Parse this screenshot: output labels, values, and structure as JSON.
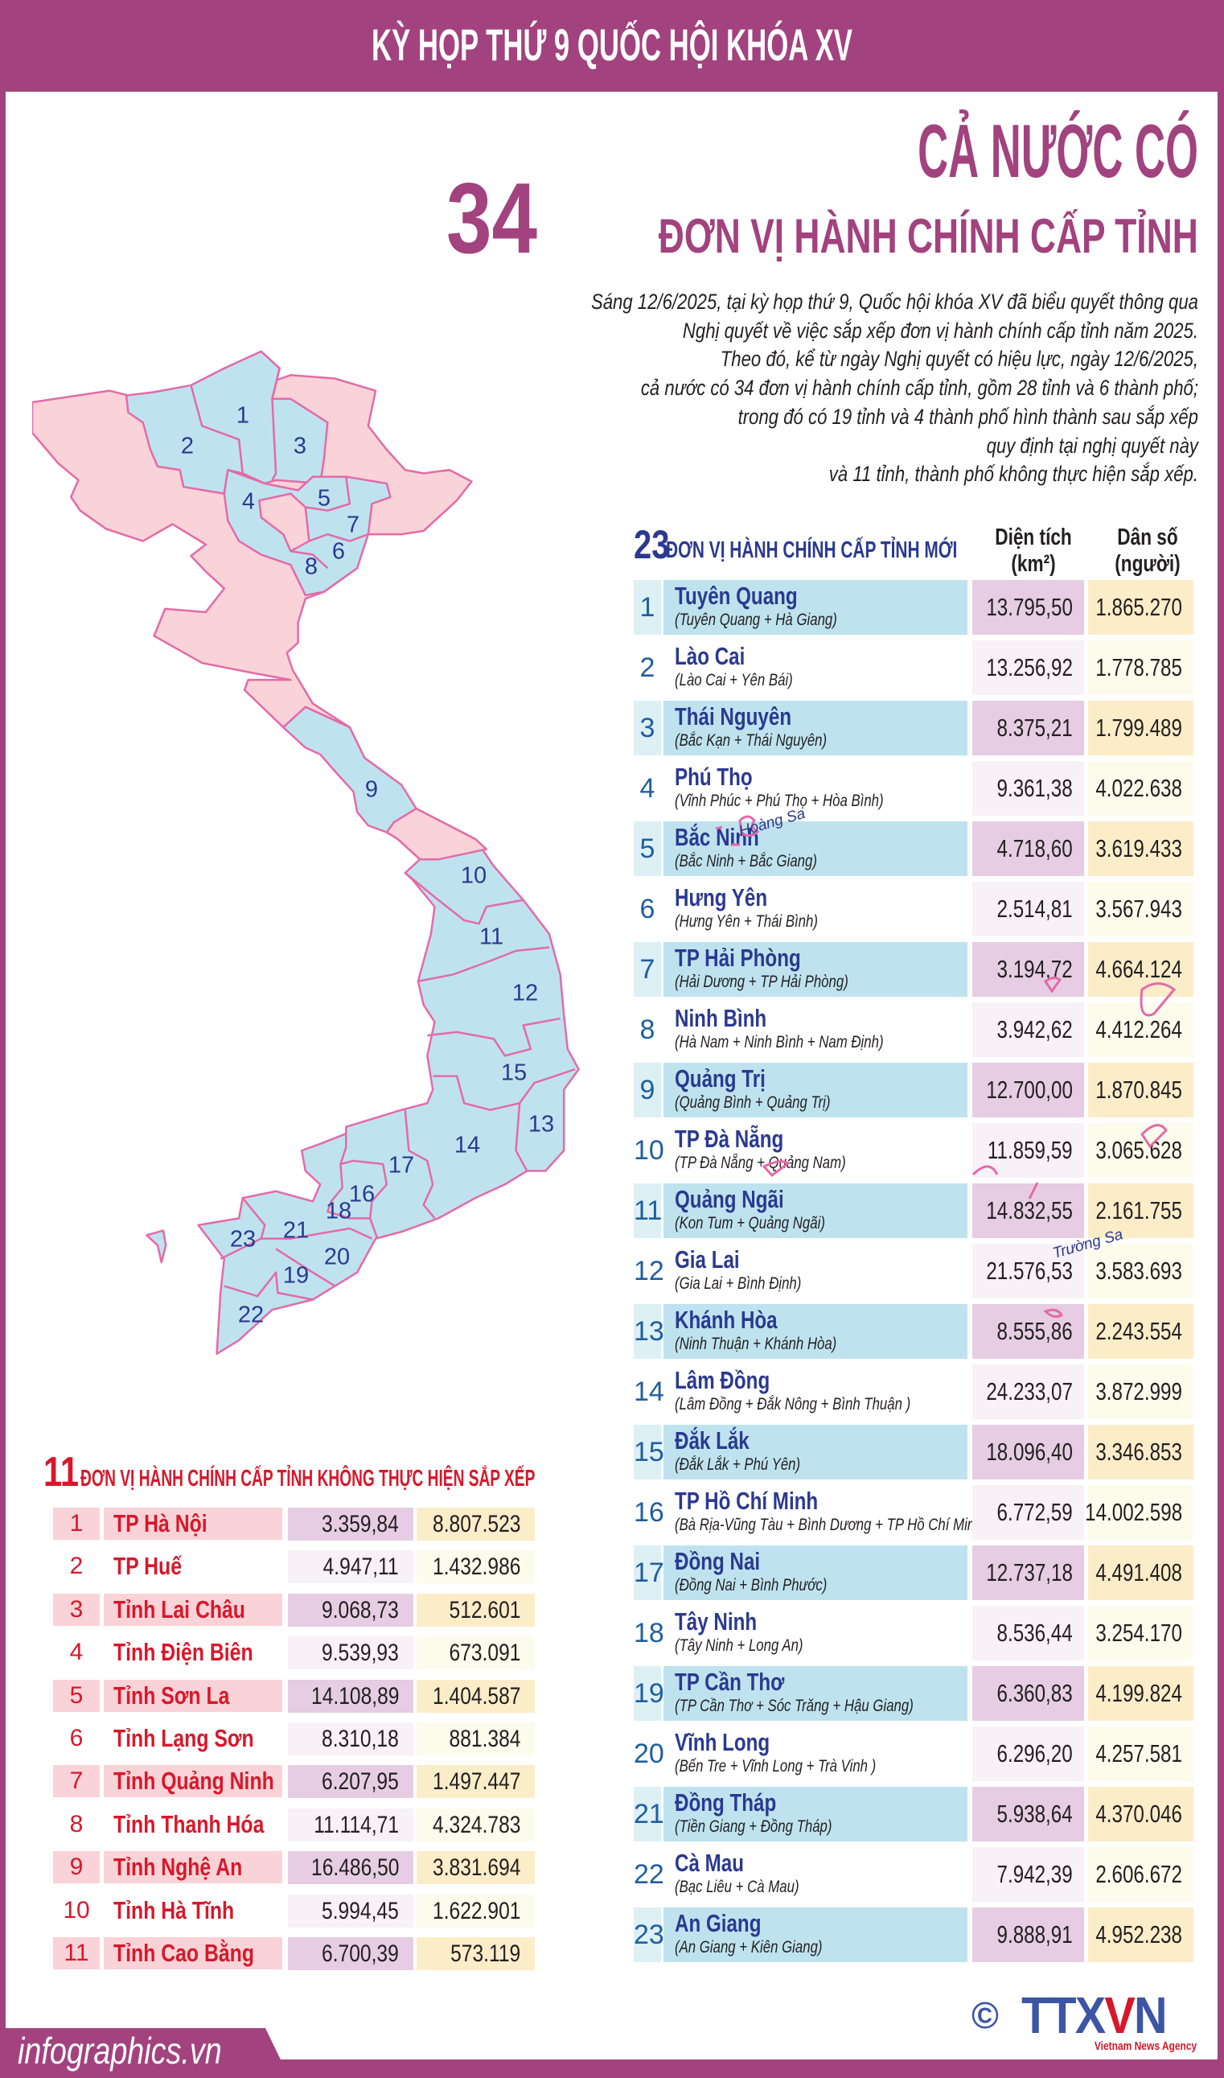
{
  "header": {
    "title": "KỲ HỌP THỨ 9 QUỐC HỘI KHÓA XV"
  },
  "headline": {
    "line1": "CẢ NƯỚC CÓ",
    "number": "34",
    "line2": "ĐƠN VỊ HÀNH CHÍNH CẤP TỈNH"
  },
  "intro_lines": [
    "Sáng 12/6/2025, tại kỳ họp thứ 9, Quốc hội khóa XV đã biểu quyết thông qua",
    "Nghị quyết về việc sắp xếp đơn vị hành chính cấp tỉnh năm 2025.",
    "Theo đó, kể từ ngày Nghị quyết có hiệu lực, ngày 12/6/2025,",
    "cả nước có 34 đơn vị hành chính cấp tỉnh, gồm 28 tỉnh và 6 thành phố;",
    "trong đó có 19 tỉnh và 4 thành phố hình thành sau sắp xếp",
    "quy định tại nghị quyết này",
    "và 11 tỉnh, thành phố không thực hiện sắp xếp."
  ],
  "map": {
    "labels": [
      "1",
      "2",
      "3",
      "4",
      "5",
      "6",
      "7",
      "8",
      "9",
      "10",
      "11",
      "12",
      "13",
      "14",
      "15",
      "16",
      "17",
      "18",
      "19",
      "20",
      "21",
      "22",
      "23"
    ],
    "islands": {
      "hoang_sa": "Hoàng Sa",
      "truong_sa": "Trường Sa"
    },
    "colors": {
      "merged": "#bee3ef",
      "unchanged": "#f9d3d8",
      "border": "#e46aa8"
    }
  },
  "new_units": {
    "count": "23",
    "title": "ĐƠN VỊ HÀNH CHÍNH CẤP TỈNH MỚI",
    "col_area": "Diện tích",
    "col_area_unit": "(km²)",
    "col_pop": "Dân số",
    "col_pop_unit": "(người)",
    "rows": [
      {
        "no": "1",
        "name": "Tuyên Quang",
        "merged": "(Tuyên Quang + Hà Giang)",
        "area": "13.795,50",
        "pop": "1.865.270"
      },
      {
        "no": "2",
        "name": "Lào Cai",
        "merged": "(Lào Cai + Yên Bái)",
        "area": "13.256,92",
        "pop": "1.778.785"
      },
      {
        "no": "3",
        "name": "Thái Nguyên",
        "merged": "(Bắc Kạn + Thái Nguyên)",
        "area": "8.375,21",
        "pop": "1.799.489"
      },
      {
        "no": "4",
        "name": "Phú Thọ",
        "merged": "(Vĩnh Phúc + Phú Thọ + Hòa Bình)",
        "area": "9.361,38",
        "pop": "4.022.638"
      },
      {
        "no": "5",
        "name": "Bắc Ninh",
        "merged": "(Bắc Ninh + Bắc Giang)",
        "area": "4.718,60",
        "pop": "3.619.433"
      },
      {
        "no": "6",
        "name": "Hưng Yên",
        "merged": "(Hưng Yên + Thái Bình)",
        "area": "2.514,81",
        "pop": "3.567.943"
      },
      {
        "no": "7",
        "name": "TP Hải Phòng",
        "merged": "(Hải Dương + TP Hải Phòng)",
        "area": "3.194,72",
        "pop": "4.664.124"
      },
      {
        "no": "8",
        "name": "Ninh Bình",
        "merged": "(Hà Nam + Ninh Bình + Nam Định)",
        "area": "3.942,62",
        "pop": "4.412.264"
      },
      {
        "no": "9",
        "name": "Quảng Trị",
        "merged": "(Quảng Bình + Quảng Trị)",
        "area": "12.700,00",
        "pop": "1.870.845"
      },
      {
        "no": "10",
        "name": "TP Đà Nẵng",
        "merged": "(TP Đà Nẵng + Quảng Nam)",
        "area": "11.859,59",
        "pop": "3.065.628"
      },
      {
        "no": "11",
        "name": "Quảng Ngãi",
        "merged": "(Kon Tum + Quảng Ngãi)",
        "area": "14.832,55",
        "pop": "2.161.755"
      },
      {
        "no": "12",
        "name": "Gia Lai",
        "merged": "(Gia Lai + Bình Định)",
        "area": "21.576,53",
        "pop": "3.583.693"
      },
      {
        "no": "13",
        "name": "Khánh Hòa",
        "merged": "(Ninh Thuận + Khánh Hòa)",
        "area": "8.555,86",
        "pop": "2.243.554"
      },
      {
        "no": "14",
        "name": "Lâm Đồng",
        "merged": "(Lâm Đồng + Đắk Nông + Bình Thuận )",
        "area": "24.233,07",
        "pop": "3.872.999"
      },
      {
        "no": "15",
        "name": "Đắk Lắk",
        "merged": "(Đắk Lắk + Phú Yên)",
        "area": "18.096,40",
        "pop": "3.346.853"
      },
      {
        "no": "16",
        "name": "TP Hồ Chí Minh",
        "merged": "(Bà Rịa-Vũng Tàu + Bình Dương + TP Hồ Chí Minh)",
        "area": "6.772,59",
        "pop": "14.002.598"
      },
      {
        "no": "17",
        "name": "Đồng Nai",
        "merged": "(Đồng Nai + Bình Phước)",
        "area": "12.737,18",
        "pop": "4.491.408"
      },
      {
        "no": "18",
        "name": "Tây Ninh",
        "merged": "(Tây Ninh + Long An)",
        "area": "8.536,44",
        "pop": "3.254.170"
      },
      {
        "no": "19",
        "name": "TP Cần Thơ",
        "merged": "(TP Cần Thơ + Sóc Trăng + Hậu Giang)",
        "area": "6.360,83",
        "pop": "4.199.824"
      },
      {
        "no": "20",
        "name": "Vĩnh Long",
        "merged": "(Bến Tre + Vĩnh Long + Trà Vinh )",
        "area": "6.296,20",
        "pop": "4.257.581"
      },
      {
        "no": "21",
        "name": "Đồng Tháp",
        "merged": "(Tiền Giang + Đồng Tháp)",
        "area": "5.938,64",
        "pop": "4.370.046"
      },
      {
        "no": "22",
        "name": "Cà Mau",
        "merged": "(Bạc Liêu + Cà Mau)",
        "area": "7.942,39",
        "pop": "2.606.672"
      },
      {
        "no": "23",
        "name": "An Giang",
        "merged": "(An Giang + Kiên Giang)",
        "area": "9.888,91",
        "pop": "4.952.238"
      }
    ]
  },
  "unchanged_units": {
    "count": "11",
    "title": "ĐƠN VỊ HÀNH CHÍNH CẤP TỈNH KHÔNG THỰC HIỆN SẮP XẾP",
    "rows": [
      {
        "no": "1",
        "name": "TP Hà Nội",
        "area": "3.359,84",
        "pop": "8.807.523"
      },
      {
        "no": "2",
        "name": "TP Huế",
        "area": "4.947,11",
        "pop": "1.432.986"
      },
      {
        "no": "3",
        "name": "Tỉnh Lai Châu",
        "area": "9.068,73",
        "pop": "512.601"
      },
      {
        "no": "4",
        "name": "Tỉnh Điện Biên",
        "area": "9.539,93",
        "pop": "673.091"
      },
      {
        "no": "5",
        "name": "Tỉnh Sơn La",
        "area": "14.108,89",
        "pop": "1.404.587"
      },
      {
        "no": "6",
        "name": "Tỉnh Lạng Sơn",
        "area": "8.310,18",
        "pop": "881.384"
      },
      {
        "no": "7",
        "name": "Tỉnh Quảng Ninh",
        "area": "6.207,95",
        "pop": "1.497.447"
      },
      {
        "no": "8",
        "name": "Tỉnh Thanh Hóa",
        "area": "11.114,71",
        "pop": "4.324.783"
      },
      {
        "no": "9",
        "name": "Tỉnh Nghệ An",
        "area": "16.486,50",
        "pop": "3.831.694"
      },
      {
        "no": "10",
        "name": "Tỉnh Hà Tĩnh",
        "area": "5.994,45",
        "pop": "1.622.901"
      },
      {
        "no": "11",
        "name": "Tỉnh Cao Bằng",
        "area": "6.700,39",
        "pop": "573.119"
      }
    ]
  },
  "footer": {
    "site": "infographics.vn",
    "copyright": "©",
    "logo": "TTXVN",
    "agency": "Vietnam News Agency"
  },
  "colors": {
    "brand_purple": "#a2427e",
    "navy": "#2b3990",
    "red": "#d7182a",
    "logo_blue": "#3c55a5"
  }
}
